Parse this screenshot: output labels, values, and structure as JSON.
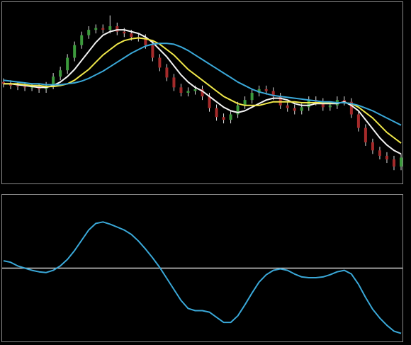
{
  "chart_data": [
    {
      "type": "candlestick",
      "open": [
        56,
        55,
        54,
        53.5,
        53,
        53,
        52,
        54,
        59,
        62.5,
        69.5,
        76.5,
        82,
        85,
        86,
        85,
        87,
        84,
        83,
        81,
        80.5,
        76.5,
        69.5,
        64,
        58.5,
        53,
        50,
        51,
        52,
        48,
        41.5,
        36.5,
        35,
        38,
        43,
        46,
        50,
        52,
        51,
        48,
        43,
        41.5,
        40,
        42,
        46,
        45,
        42,
        43,
        46,
        45,
        38,
        30.5,
        22.5,
        18,
        15,
        13,
        9
      ],
      "high": [
        58,
        57,
        56,
        55.5,
        55,
        55,
        56,
        61,
        64.5,
        71.5,
        78.5,
        84,
        87,
        88,
        88,
        93,
        89,
        86,
        85,
        83,
        82.5,
        78.5,
        71.5,
        66,
        60.5,
        55,
        53,
        54,
        54,
        50,
        43.5,
        38.5,
        40,
        45,
        48,
        52,
        54,
        54,
        53,
        50,
        45,
        43.5,
        44,
        48,
        48,
        47,
        45,
        48,
        48,
        47,
        40,
        32.5,
        24.5,
        20,
        17,
        15,
        16
      ],
      "low": [
        53,
        52,
        51.5,
        51,
        51,
        50,
        50,
        52,
        57,
        60.5,
        67.5,
        74.5,
        80,
        83,
        83,
        83,
        82,
        81,
        79,
        78.5,
        74.5,
        67.5,
        62,
        56.5,
        51,
        48,
        48,
        49,
        46,
        39.5,
        34.5,
        33,
        33,
        36,
        41,
        44,
        48,
        49,
        46,
        41,
        39.5,
        38,
        38,
        40,
        43,
        40,
        40,
        41,
        43,
        36,
        28.5,
        20.5,
        16,
        13,
        11,
        7,
        7
      ],
      "close": [
        55,
        54,
        53.5,
        53,
        53,
        52,
        54,
        59,
        62.5,
        69.5,
        76.5,
        82,
        85,
        86,
        85,
        87,
        84,
        83,
        81,
        80.5,
        76.5,
        69.5,
        64,
        58.5,
        53,
        50,
        51,
        52,
        48,
        41.5,
        36.5,
        35,
        38,
        43,
        46,
        50,
        52,
        51,
        48,
        43,
        41.5,
        40,
        42,
        46,
        45,
        42,
        43,
        46,
        45,
        38,
        30.5,
        22.5,
        18,
        15,
        13,
        9,
        14
      ],
      "up_color": "#3c9a3c",
      "down_color": "#a52a2a",
      "wick_color": "#dddddd",
      "series": [
        {
          "color": "#f2f2f2",
          "values": [
            55,
            55,
            54.5,
            54,
            53.5,
            53,
            53,
            54,
            56,
            59,
            63,
            68,
            73,
            78,
            82,
            84,
            85,
            85,
            84,
            83,
            81,
            78,
            74,
            70,
            65,
            60,
            56,
            53,
            51,
            48,
            45,
            42,
            40,
            39,
            40,
            42,
            44,
            46,
            47,
            47,
            46,
            44,
            43,
            43,
            44,
            44,
            44,
            44,
            45,
            43,
            40,
            35,
            30,
            25,
            21,
            18,
            16
          ]
        },
        {
          "color": "#f0e84a",
          "values": [
            55,
            55,
            55,
            54.5,
            54,
            54,
            53.5,
            53.5,
            54,
            55,
            57,
            60,
            63,
            67,
            71,
            74,
            77,
            79,
            80,
            80.5,
            80,
            79,
            77,
            74,
            71,
            67,
            63,
            60,
            57,
            54,
            51,
            48,
            46,
            44,
            43,
            43,
            43,
            44,
            45,
            45,
            45,
            45,
            44.5,
            44.5,
            44.5,
            44.5,
            44.5,
            44.5,
            44.5,
            44,
            42,
            39,
            36,
            32,
            28,
            25,
            22
          ]
        },
        {
          "color": "#3aa8d8",
          "values": [
            57,
            56.5,
            56,
            55.5,
            55,
            55,
            54.5,
            54.5,
            54.5,
            55,
            55.5,
            56.5,
            58,
            60,
            62,
            64.5,
            67,
            69.5,
            72,
            74,
            76,
            77,
            77.5,
            77.5,
            77,
            75.5,
            73.5,
            71,
            68.5,
            66,
            63.5,
            61,
            58.5,
            56,
            54,
            52,
            50.5,
            49.5,
            48.5,
            48,
            47.5,
            47,
            46.5,
            46,
            45.5,
            45,
            45,
            44.5,
            44.5,
            44,
            43,
            41.5,
            40,
            38,
            36,
            34,
            32
          ]
        }
      ],
      "ylim": [
        0,
        100
      ]
    },
    {
      "type": "line",
      "series": [
        {
          "color": "#3aa8d8",
          "values": [
            10,
            8,
            3,
            0,
            -3,
            -5,
            -6,
            -3,
            3,
            12,
            24,
            38,
            52,
            61,
            63,
            60,
            56,
            52,
            46,
            37,
            26,
            14,
            1,
            -14,
            -29,
            -44,
            -55,
            -58,
            -58,
            -60,
            -67,
            -74,
            -74,
            -65,
            -50,
            -34,
            -19,
            -9,
            -3,
            -1,
            -3,
            -8,
            -12,
            -13,
            -13,
            -12,
            -9,
            -5,
            -3,
            -8,
            -22,
            -40,
            -56,
            -68,
            -78,
            -86,
            -89
          ]
        }
      ],
      "reference_line": 0,
      "reference_color": "#cfcfcf",
      "ylim": [
        -100,
        100
      ]
    }
  ]
}
